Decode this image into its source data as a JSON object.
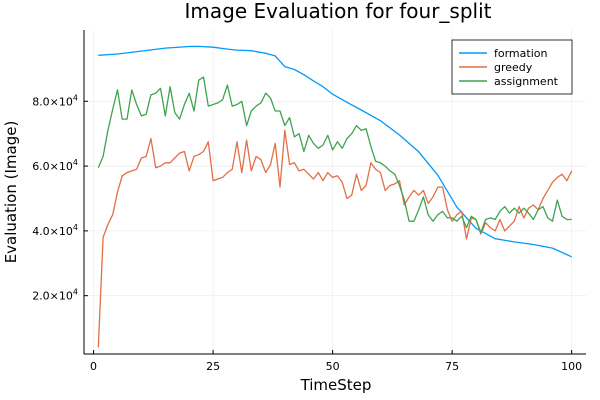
{
  "chart_data": {
    "type": "line",
    "title": "Image Evaluation for four_split",
    "xlabel": "TimeStep",
    "ylabel": "Evaluation (Image)",
    "xlim": [
      -2,
      103
    ],
    "ylim": [
      2000,
      102000
    ],
    "xticks": [
      0,
      25,
      50,
      75,
      100
    ],
    "xtick_labels": [
      "0",
      "25",
      "50",
      "75",
      "100"
    ],
    "yticks": [
      20000,
      40000,
      60000,
      80000
    ],
    "ytick_labels": [
      {
        "mantissa": "2.0",
        "base": "10",
        "exp": "4"
      },
      {
        "mantissa": "4.0",
        "base": "10",
        "exp": "4"
      },
      {
        "mantissa": "6.0",
        "base": "10",
        "exp": "4"
      },
      {
        "mantissa": "8.0",
        "base": "10",
        "exp": "4"
      }
    ],
    "grid": true,
    "legend_position": "top-right",
    "series": [
      {
        "name": "formation",
        "color": "#009af9",
        "x": [
          1,
          5,
          10,
          15,
          20,
          22,
          25,
          28,
          30,
          33,
          36,
          38,
          40,
          42,
          44,
          46,
          48,
          50,
          53,
          56,
          60,
          64,
          68,
          72,
          76,
          80,
          84,
          88,
          92,
          96,
          100
        ],
        "y": [
          94200,
          94600,
          95500,
          96400,
          96900,
          96950,
          96700,
          96100,
          95800,
          95600,
          94800,
          94000,
          90700,
          89800,
          88200,
          86300,
          84500,
          82200,
          79700,
          77300,
          74000,
          69600,
          64400,
          57200,
          47300,
          40800,
          37600,
          36600,
          35800,
          34700,
          32000
        ]
      },
      {
        "name": "greedy",
        "color": "#e26f46",
        "x": [
          1,
          2,
          3,
          4,
          5,
          6,
          7,
          8,
          9,
          10,
          11,
          12,
          13,
          14,
          15,
          16,
          17,
          18,
          19,
          20,
          21,
          22,
          23,
          24,
          25,
          26,
          27,
          28,
          29,
          30,
          31,
          32,
          33,
          34,
          35,
          36,
          37,
          38,
          39,
          40,
          41,
          42,
          43,
          44,
          45,
          46,
          47,
          48,
          49,
          50,
          51,
          52,
          53,
          54,
          55,
          56,
          57,
          58,
          59,
          60,
          61,
          62,
          63,
          64,
          65,
          66,
          67,
          68,
          69,
          70,
          71,
          72,
          73,
          74,
          75,
          76,
          77,
          78,
          79,
          80,
          81,
          82,
          83,
          84,
          85,
          86,
          87,
          88,
          89,
          90,
          91,
          92,
          93,
          94,
          95,
          96,
          97,
          98,
          99,
          100
        ],
        "y": [
          4000,
          38000,
          42000,
          45000,
          52000,
          57000,
          58000,
          58500,
          59000,
          62500,
          63000,
          68500,
          59500,
          60000,
          61000,
          61000,
          62500,
          64000,
          64500,
          58500,
          63000,
          63500,
          64500,
          67500,
          55500,
          56000,
          56500,
          58000,
          59000,
          67500,
          58000,
          68000,
          58500,
          63000,
          62000,
          58000,
          60500,
          67000,
          53500,
          71000,
          60500,
          61000,
          58500,
          59000,
          57500,
          56000,
          58000,
          55500,
          58000,
          56500,
          57000,
          55000,
          50000,
          51000,
          57500,
          52500,
          54000,
          61000,
          59000,
          58000,
          52500,
          54000,
          54500,
          55500,
          48000,
          50500,
          52500,
          51000,
          52500,
          48500,
          50500,
          53500,
          53500,
          46500,
          43000,
          45000,
          46000,
          37500,
          44000,
          43500,
          39000,
          42500,
          41000,
          40000,
          43500,
          40000,
          41500,
          43000,
          47500,
          44000,
          47000,
          48000,
          46500,
          50000,
          52500,
          55000,
          56500,
          57500,
          55500,
          58500
        ]
      },
      {
        "name": "assignment",
        "color": "#3ea44e",
        "x": [
          1,
          2,
          3,
          4,
          5,
          6,
          7,
          8,
          9,
          10,
          11,
          12,
          13,
          14,
          15,
          16,
          17,
          18,
          19,
          20,
          21,
          22,
          23,
          24,
          25,
          26,
          27,
          28,
          29,
          30,
          31,
          32,
          33,
          34,
          35,
          36,
          37,
          38,
          39,
          40,
          41,
          42,
          43,
          44,
          45,
          46,
          47,
          48,
          49,
          50,
          51,
          52,
          53,
          54,
          55,
          56,
          57,
          58,
          59,
          60,
          61,
          62,
          63,
          64,
          65,
          66,
          67,
          68,
          69,
          70,
          71,
          72,
          73,
          74,
          75,
          76,
          77,
          78,
          79,
          80,
          81,
          82,
          83,
          84,
          85,
          86,
          87,
          88,
          89,
          90,
          91,
          92,
          93,
          94,
          95,
          96,
          97,
          98,
          99,
          100
        ],
        "y": [
          59500,
          63000,
          71000,
          77500,
          83500,
          74500,
          74500,
          83500,
          79000,
          75500,
          76000,
          82000,
          82500,
          84000,
          75500,
          84500,
          76500,
          74500,
          79000,
          82500,
          77000,
          86500,
          87500,
          78500,
          79000,
          79500,
          80500,
          85000,
          78500,
          79000,
          80000,
          72500,
          77000,
          78500,
          79500,
          82500,
          81000,
          77000,
          77000,
          72500,
          75000,
          69000,
          70000,
          64500,
          69500,
          67000,
          65500,
          66500,
          69500,
          65000,
          67500,
          65500,
          68500,
          70000,
          72500,
          71000,
          71500,
          66000,
          61500,
          61000,
          60000,
          58500,
          57500,
          54000,
          49500,
          43000,
          43000,
          46500,
          50500,
          45000,
          43000,
          45000,
          46000,
          44000,
          44000,
          43000,
          44500,
          41000,
          44500,
          43500,
          39500,
          43500,
          44000,
          43500,
          46000,
          47500,
          45500,
          47000,
          45500,
          47000,
          45500,
          43500,
          46500,
          47500,
          44000,
          43000,
          49500,
          44500,
          43500,
          43500
        ]
      }
    ]
  }
}
